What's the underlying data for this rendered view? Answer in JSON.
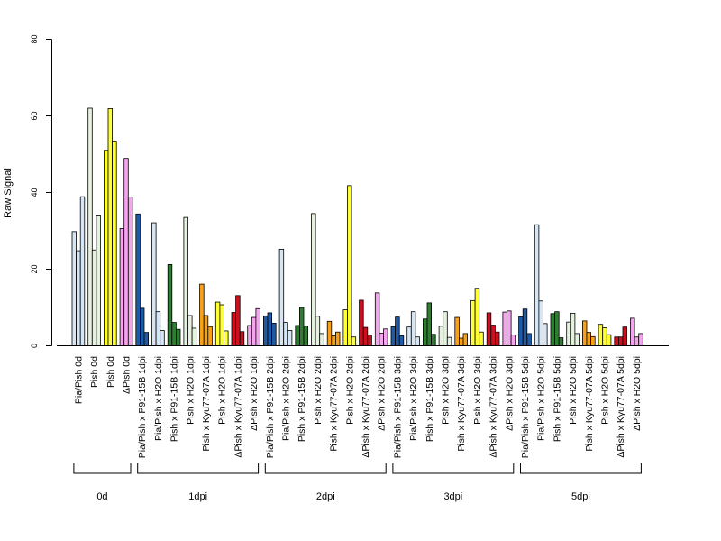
{
  "chart_data": {
    "type": "bar",
    "ylabel": "Raw Signal",
    "ylim": [
      0,
      80
    ],
    "yticks": [
      0,
      20,
      40,
      60,
      80
    ],
    "grid": false,
    "categories": [
      {
        "label": "Pia/Pish 0d",
        "color": "#d6e6f5",
        "values": [
          29.8,
          24.8,
          38.9
        ]
      },
      {
        "label": "Pish 0d",
        "color": "#e6f2e0",
        "values": [
          62.0,
          25.0,
          33.9
        ]
      },
      {
        "label": "Pish 0d",
        "color": "#ffff33",
        "values": [
          51.0,
          61.9,
          53.4
        ]
      },
      {
        "label": "ΔPish 0d",
        "color": "#f4a5ed",
        "values": [
          30.6,
          48.9,
          38.8
        ]
      },
      {
        "label": "Pia/Pish x P91-15B 1dpi",
        "color": "#1f5aa6",
        "values": [
          34.4,
          9.8,
          3.5
        ]
      },
      {
        "label": "Pia/Pish x H2O 1dpi",
        "color": "#d6e6f5",
        "values": [
          32.1,
          8.9,
          4.0
        ]
      },
      {
        "label": "Pish x P91-15B 1dpi",
        "color": "#2e7d32",
        "values": [
          21.2,
          6.1,
          4.3
        ]
      },
      {
        "label": "Pish x H2O 1dpi",
        "color": "#e6f2e0",
        "values": [
          33.5,
          7.9,
          4.6
        ]
      },
      {
        "label": "Pish x Kyu77-07A 1dpi",
        "color": "#f7a11a",
        "values": [
          16.1,
          7.9,
          5.0
        ]
      },
      {
        "label": "Pish x H2O 1dpi",
        "color": "#ffff33",
        "values": [
          11.4,
          10.7,
          3.9
        ]
      },
      {
        "label": "ΔPish x Kyu77-07A 1dpi",
        "color": "#cc1020",
        "values": [
          8.7,
          13.1,
          3.7
        ]
      },
      {
        "label": "ΔPish x H2O 1dpi",
        "color": "#f4a5ed",
        "values": [
          5.3,
          7.4,
          9.7
        ]
      },
      {
        "label": "Pia/Pish x P91-15B 2dpi",
        "color": "#1f5aa6",
        "values": [
          7.8,
          8.6,
          5.9
        ]
      },
      {
        "label": "Pia/Pish x H2O 2dpi",
        "color": "#d6e6f5",
        "values": [
          25.2,
          6.1,
          4.0
        ]
      },
      {
        "label": "Pish x P91-15B 2dpi",
        "color": "#2e7d32",
        "values": [
          5.3,
          10.0,
          5.2
        ]
      },
      {
        "label": "Pish x H2O 2dpi",
        "color": "#e6f2e0",
        "values": [
          34.5,
          7.7,
          3.2
        ]
      },
      {
        "label": "Pish x Kyu77-07A 2dpi",
        "color": "#f7a11a",
        "values": [
          6.4,
          2.6,
          3.6
        ]
      },
      {
        "label": "Pish x H2O 2dpi",
        "color": "#ffff33",
        "values": [
          9.4,
          41.8,
          2.3
        ]
      },
      {
        "label": "ΔPish x Kyu77-07A 2dpi",
        "color": "#cc1020",
        "values": [
          11.9,
          4.8,
          2.8
        ]
      },
      {
        "label": "ΔPish x H2O 2dpi",
        "color": "#f4a5ed",
        "values": [
          13.8,
          3.3,
          4.4
        ]
      },
      {
        "label": "Pia/Pish x P91-15B 3dpi",
        "color": "#1f5aa6",
        "values": [
          5.0,
          7.5,
          2.6
        ]
      },
      {
        "label": "Pia/Pish x H2O 3dpi",
        "color": "#d6e6f5",
        "values": [
          4.9,
          8.9,
          2.3
        ]
      },
      {
        "label": "Pish x P91-15B 3dpi",
        "color": "#2e7d32",
        "values": [
          7.0,
          11.2,
          3.0
        ]
      },
      {
        "label": "Pish x H2O 3dpi",
        "color": "#e6f2e0",
        "values": [
          5.1,
          8.9,
          2.2
        ]
      },
      {
        "label": "Pish x Kyu77-07A 3dpi",
        "color": "#f7a11a",
        "values": [
          7.4,
          2.0,
          3.2
        ]
      },
      {
        "label": "Pish x H2O 3dpi",
        "color": "#ffff33",
        "values": [
          11.8,
          15.0,
          3.6
        ]
      },
      {
        "label": "ΔPish x Kyu77-07A 3dpi",
        "color": "#cc1020",
        "values": [
          8.6,
          5.4,
          3.6
        ]
      },
      {
        "label": "ΔPish x H2O 3dpi",
        "color": "#f4a5ed",
        "values": [
          8.8,
          9.1,
          2.8
        ]
      },
      {
        "label": "Pia/Pish x P91-15B 5dpi",
        "color": "#1f5aa6",
        "values": [
          7.6,
          9.6,
          3.2
        ]
      },
      {
        "label": "Pia/Pish x H2O 5dpi",
        "color": "#d6e6f5",
        "values": [
          31.6,
          11.7,
          5.8
        ]
      },
      {
        "label": "Pish x P91-15B 5dpi",
        "color": "#2e7d32",
        "values": [
          8.4,
          8.9,
          2.1
        ]
      },
      {
        "label": "Pish x H2O 5dpi",
        "color": "#e6f2e0",
        "values": [
          6.2,
          8.5,
          3.2
        ]
      },
      {
        "label": "Pish x Kyu77-07A 5dpi",
        "color": "#f7a11a",
        "values": [
          6.5,
          3.5,
          2.4
        ]
      },
      {
        "label": "Pish x H2O 5dpi",
        "color": "#ffff33",
        "values": [
          5.6,
          4.7,
          2.9
        ]
      },
      {
        "label": "ΔPish x Kyu77-07A 5dpi",
        "color": "#cc1020",
        "values": [
          2.3,
          2.3,
          4.9
        ]
      },
      {
        "label": "ΔPish x H2O 5dpi",
        "color": "#f4a5ed",
        "values": [
          7.2,
          2.3,
          3.2
        ]
      }
    ],
    "groups": [
      {
        "label": "0d",
        "first": 0,
        "last": 3
      },
      {
        "label": "1dpi",
        "first": 4,
        "last": 11
      },
      {
        "label": "2dpi",
        "first": 12,
        "last": 19
      },
      {
        "label": "3dpi",
        "first": 20,
        "last": 27
      },
      {
        "label": "5dpi",
        "first": 28,
        "last": 35
      }
    ]
  }
}
